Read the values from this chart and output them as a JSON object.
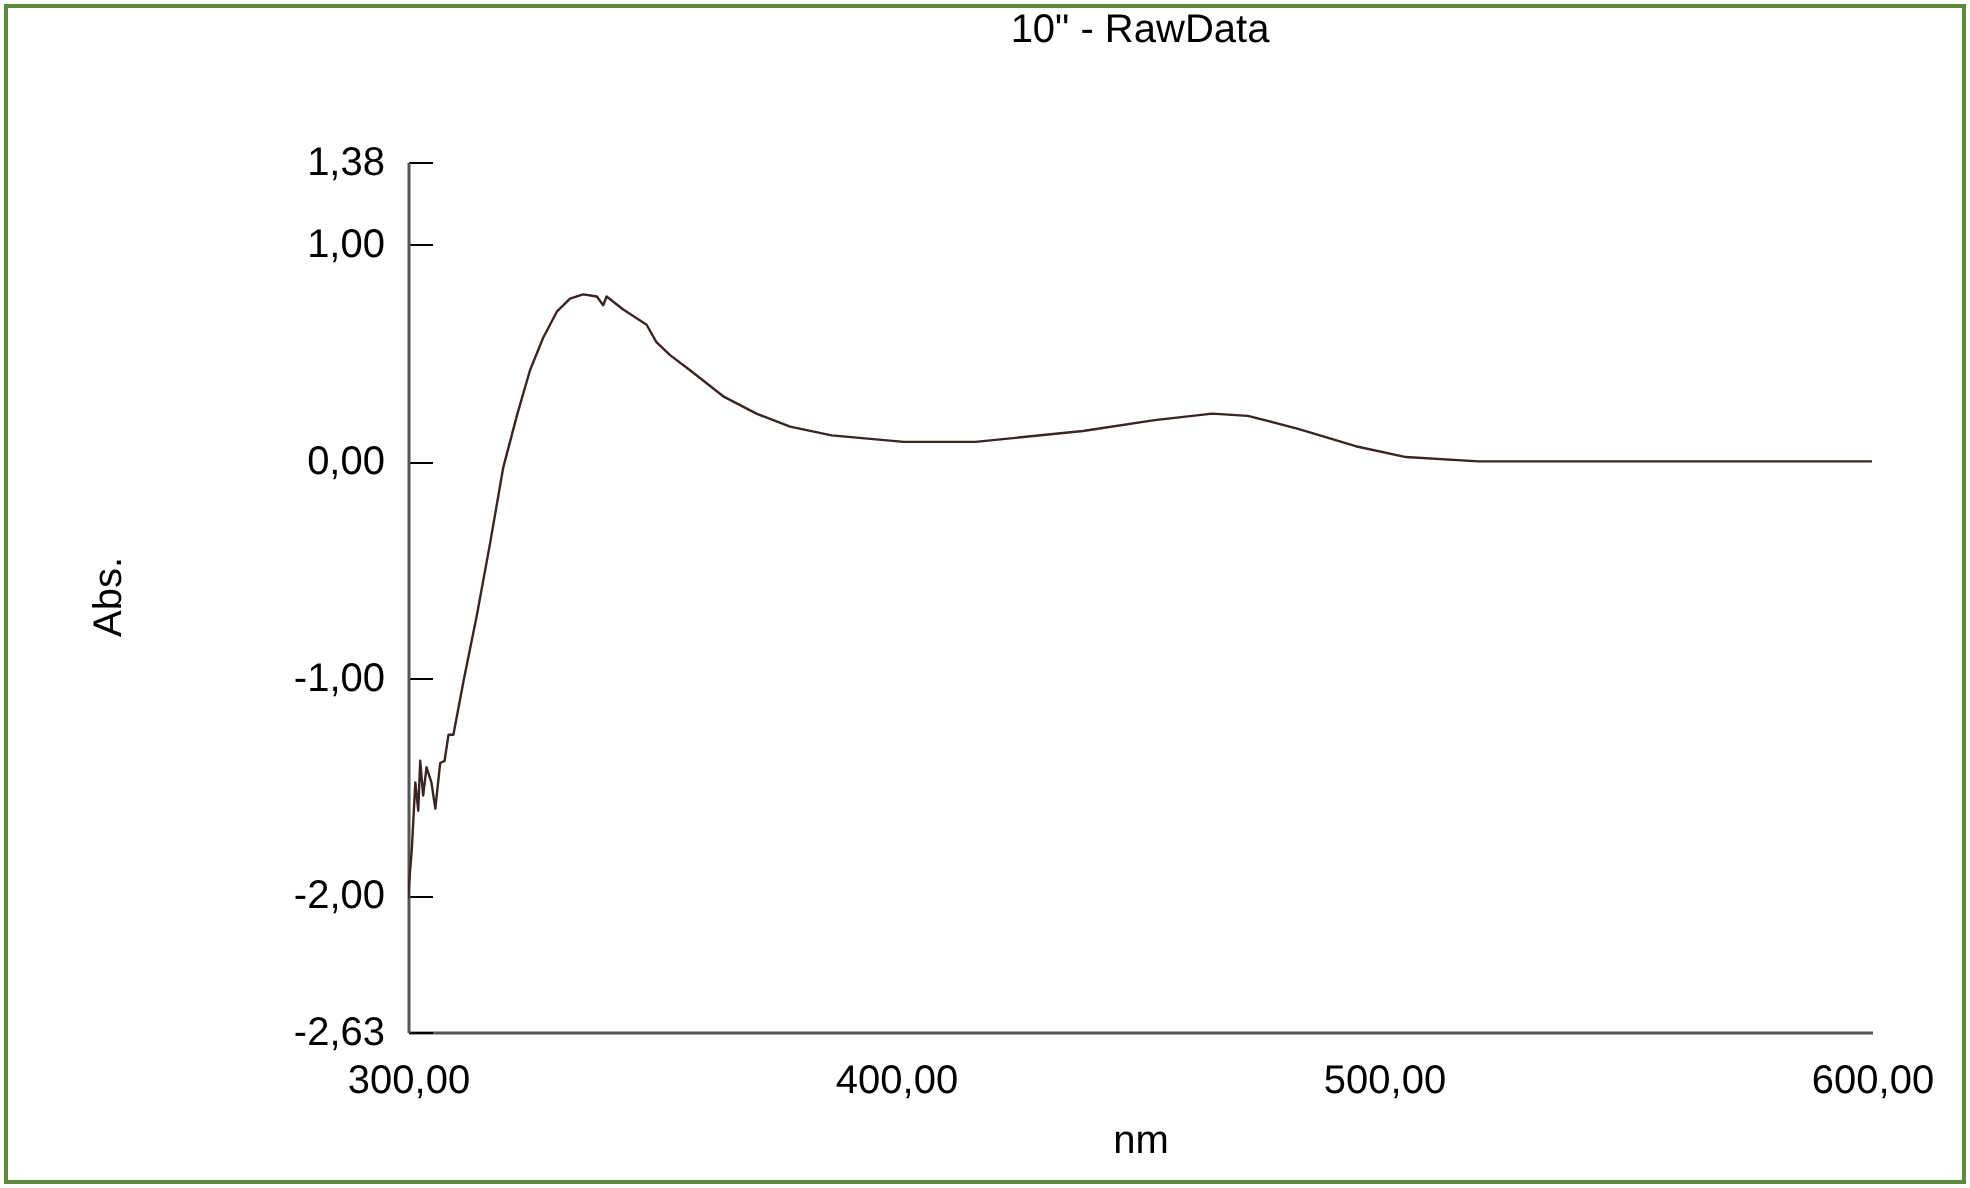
{
  "chart_data": {
    "type": "line",
    "title": "10\" - RawData",
    "xlabel": "nm",
    "ylabel": "Abs.",
    "xlim": [
      300,
      600
    ],
    "ylim": [
      -2.63,
      1.38
    ],
    "xticks": [
      {
        "value": 300,
        "label": "300,00"
      },
      {
        "value": 400,
        "label": "400,00"
      },
      {
        "value": 500,
        "label": "500,00"
      },
      {
        "value": 600,
        "label": "600,00"
      }
    ],
    "yticks": [
      {
        "value": 1.38,
        "label": "1,38"
      },
      {
        "value": 1,
        "label": "1,00"
      },
      {
        "value": 0,
        "label": "0,00"
      },
      {
        "value": -1,
        "label": "-1,00"
      },
      {
        "value": -2,
        "label": "-2,00"
      },
      {
        "value": -2.63,
        "label": "-2,63"
      }
    ],
    "grid": false,
    "marker": "none",
    "line_style": "solid",
    "series": [
      {
        "color": "#3a2424",
        "x": [
          300,
          300.8,
          301.5,
          302.1,
          302.5,
          303.1,
          303.8,
          304.8,
          305.6,
          306.6,
          307.5,
          308.3,
          309.3,
          311.4,
          314.1,
          316.8,
          319.5,
          322.3,
          325,
          327.7,
          330.5,
          333.2,
          335.9,
          338.7,
          340,
          340.7,
          344.1,
          348.9,
          350.9,
          353.7,
          357.8,
          364.6,
          371.4,
          378.3,
          386.8,
          401.6,
          416.3,
          438.3,
          453,
          464.8,
          472.1,
          482.4,
          494.2,
          504.5,
          519.3,
          540,
          560,
          580,
          600
        ],
        "values": [
          -2.01,
          -1.78,
          -1.48,
          -1.61,
          -1.38,
          -1.54,
          -1.41,
          -1.48,
          -1.6,
          -1.39,
          -1.38,
          -1.26,
          -1.26,
          -1.01,
          -0.71,
          -0.38,
          -0.03,
          0.21,
          0.42,
          0.57,
          0.69,
          0.75,
          0.77,
          0.76,
          0.72,
          0.76,
          0.7,
          0.63,
          0.55,
          0.49,
          0.42,
          0.3,
          0.22,
          0.16,
          0.12,
          0.09,
          0.09,
          0.14,
          0.19,
          0.22,
          0.21,
          0.15,
          0.07,
          0.02,
          0,
          0,
          0,
          0,
          0
        ]
      }
    ]
  }
}
